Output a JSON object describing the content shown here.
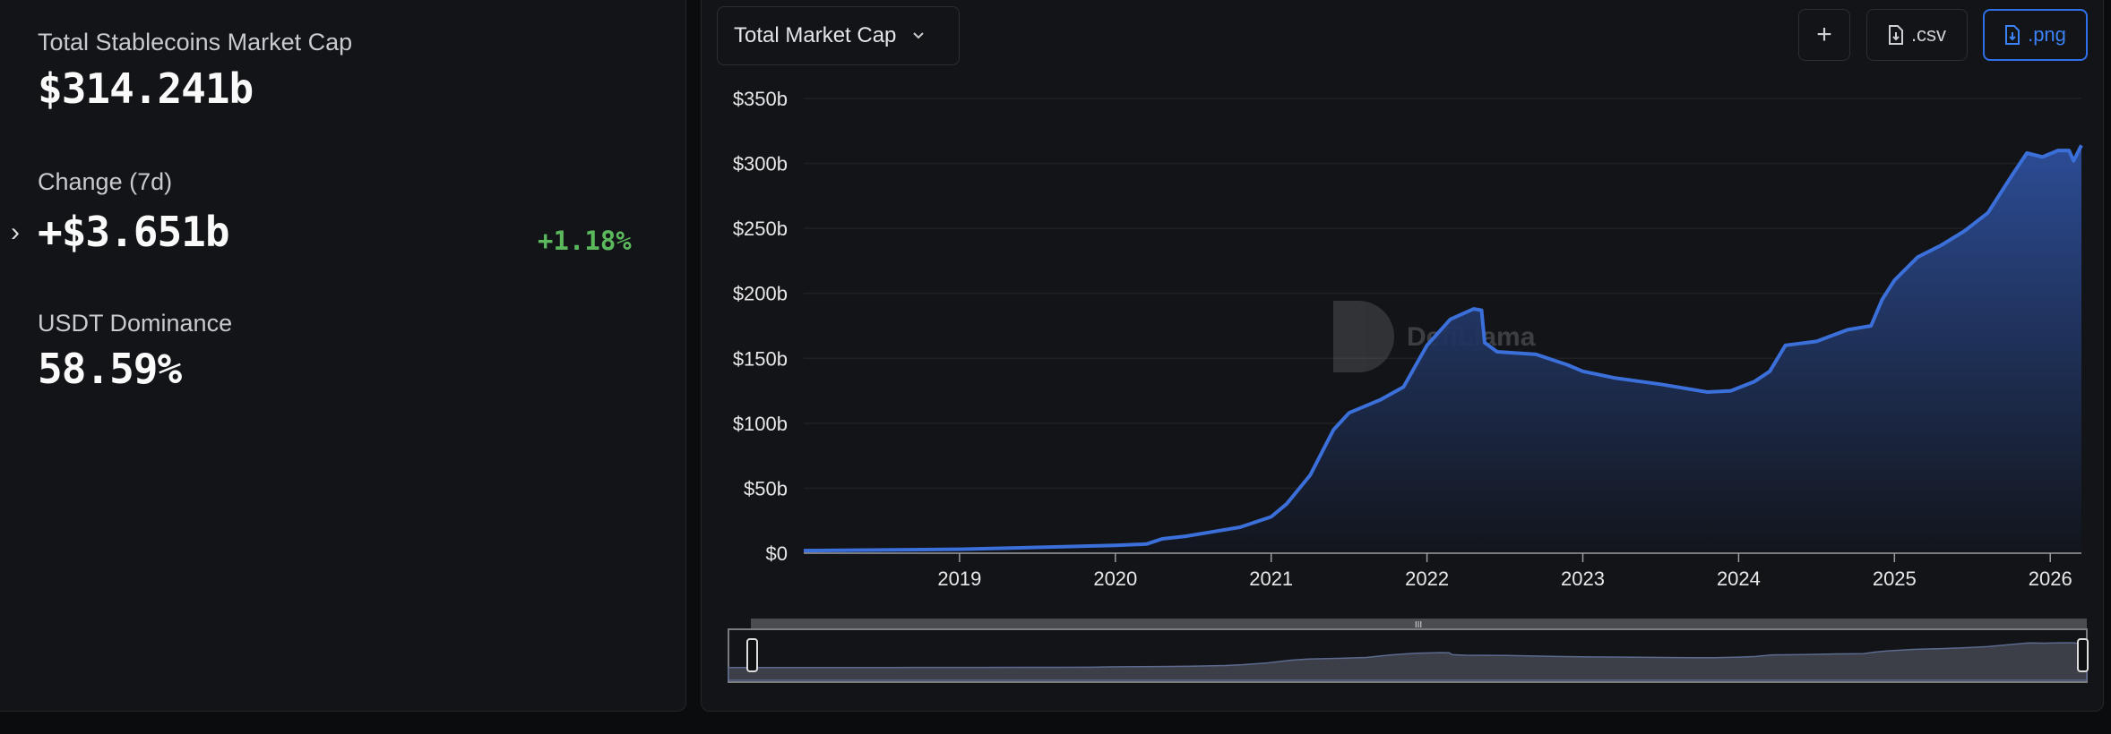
{
  "summary": {
    "total_label": "Total Stablecoins Market Cap",
    "total_value": "$314.241b",
    "change_label": "Change (7d)",
    "change_value": "+$3.651b",
    "change_pct": "+1.18%",
    "dominance_label": "USDT Dominance",
    "dominance_value": "58.59%"
  },
  "toolbar": {
    "dropdown_value": "Total Market Cap",
    "add_label": "+",
    "csv_label": ".csv",
    "png_label": ".png"
  },
  "watermark": "DefiLlama",
  "colors": {
    "line": "#3b6fd9",
    "positive": "#5cb85c",
    "accent": "#2f6fe8"
  },
  "chart_data": {
    "type": "area",
    "xlim": [
      2018.0,
      2026.2
    ],
    "ylim": [
      0,
      350
    ],
    "y_ticks": [
      "$0",
      "$50b",
      "$100b",
      "$150b",
      "$200b",
      "$250b",
      "$300b",
      "$350b"
    ],
    "y_tick_values": [
      0,
      50,
      100,
      150,
      200,
      250,
      300,
      350
    ],
    "x_ticks": [
      "2019",
      "2020",
      "2021",
      "2022",
      "2023",
      "2024",
      "2025",
      "2026"
    ],
    "grid": true,
    "unit": "billion USD",
    "series": [
      {
        "x": [
          2018.0,
          2018.5,
          2019.0,
          2019.5,
          2020.0,
          2020.2,
          2020.3,
          2020.45,
          2020.6,
          2020.8,
          2021.0,
          2021.1,
          2021.25,
          2021.4,
          2021.5,
          2021.7,
          2021.85,
          2022.0,
          2022.15,
          2022.3,
          2022.35,
          2022.37,
          2022.45,
          2022.7,
          2022.9,
          2023.0,
          2023.2,
          2023.5,
          2023.8,
          2023.95,
          2024.1,
          2024.2,
          2024.3,
          2024.5,
          2024.7,
          2024.85,
          2024.92,
          2025.0,
          2025.15,
          2025.3,
          2025.45,
          2025.6,
          2025.75,
          2025.85,
          2025.95,
          2026.05,
          2026.12,
          2026.15,
          2026.2
        ],
        "y": [
          2,
          2.5,
          3,
          4.5,
          6,
          7,
          11,
          13,
          16,
          20,
          28,
          38,
          60,
          95,
          108,
          118,
          128,
          160,
          180,
          188,
          187,
          162,
          155,
          153,
          145,
          140,
          135,
          130,
          124,
          125,
          132,
          140,
          160,
          163,
          172,
          175,
          195,
          210,
          228,
          237,
          248,
          262,
          290,
          308,
          305,
          310,
          310,
          302,
          314
        ]
      }
    ]
  }
}
